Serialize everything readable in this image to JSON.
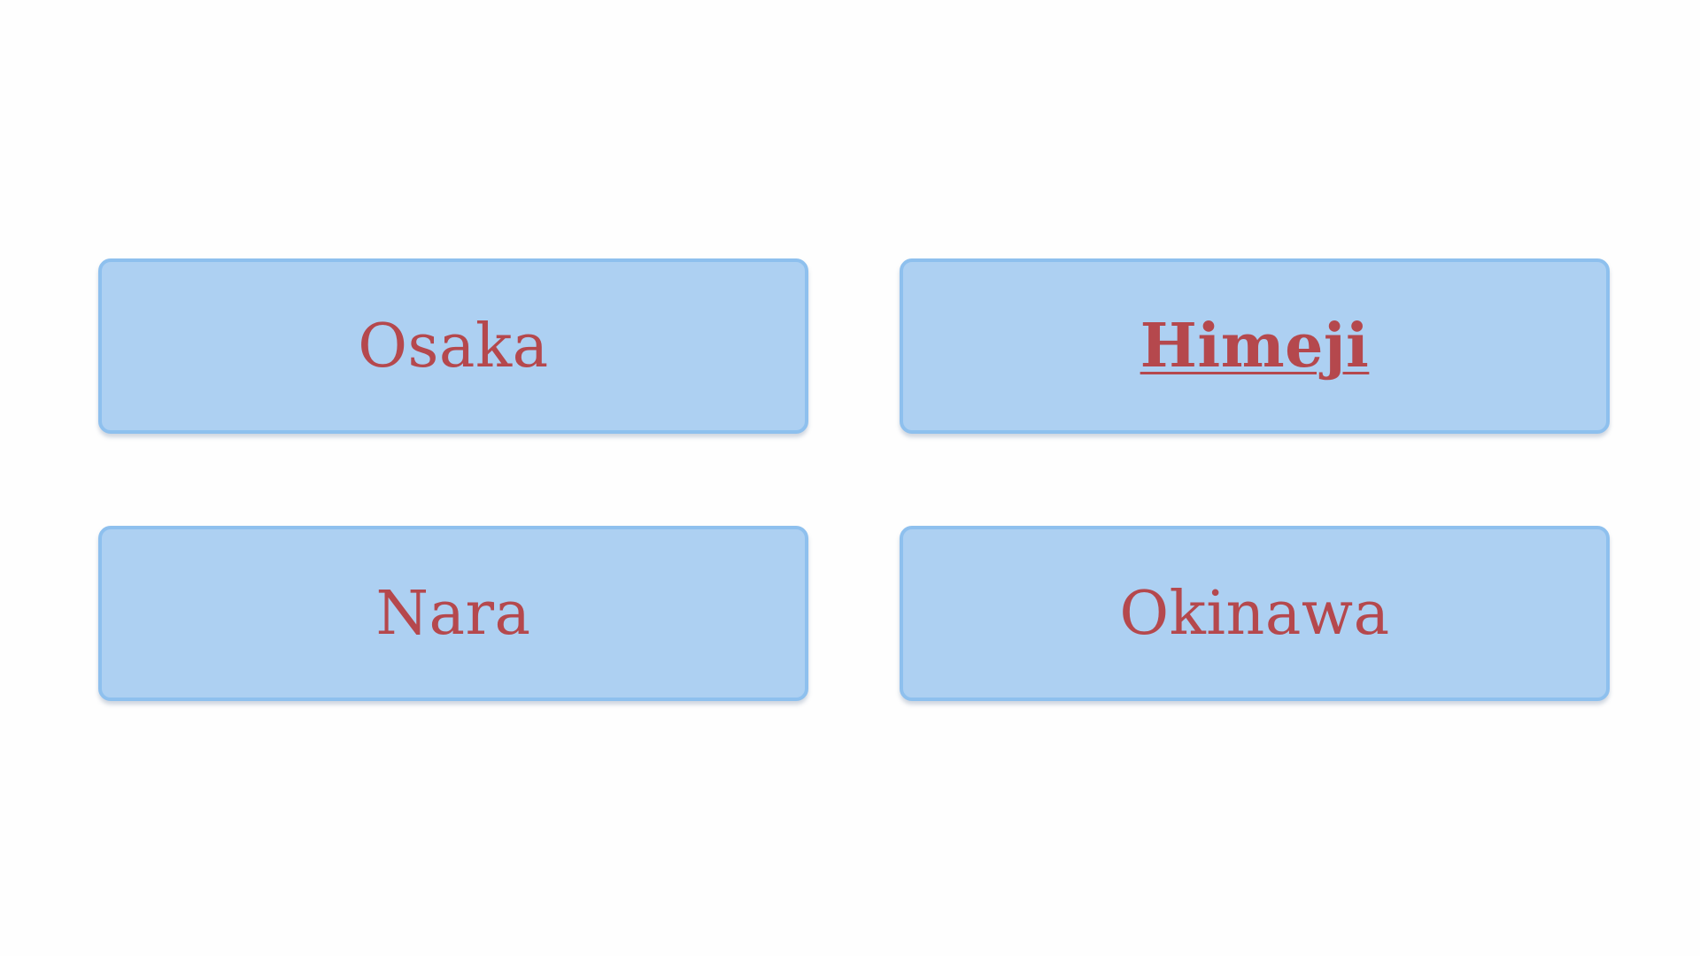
{
  "options": [
    {
      "label": "Osaka",
      "selected": false
    },
    {
      "label": "Himeji",
      "selected": true
    },
    {
      "label": "Nara",
      "selected": false
    },
    {
      "label": "Okinawa",
      "selected": false
    }
  ],
  "colors": {
    "page_background": "#fefefe",
    "button_fill": "#add0f2",
    "button_border": "#8ec0ee",
    "label_text": "#b5484d"
  }
}
